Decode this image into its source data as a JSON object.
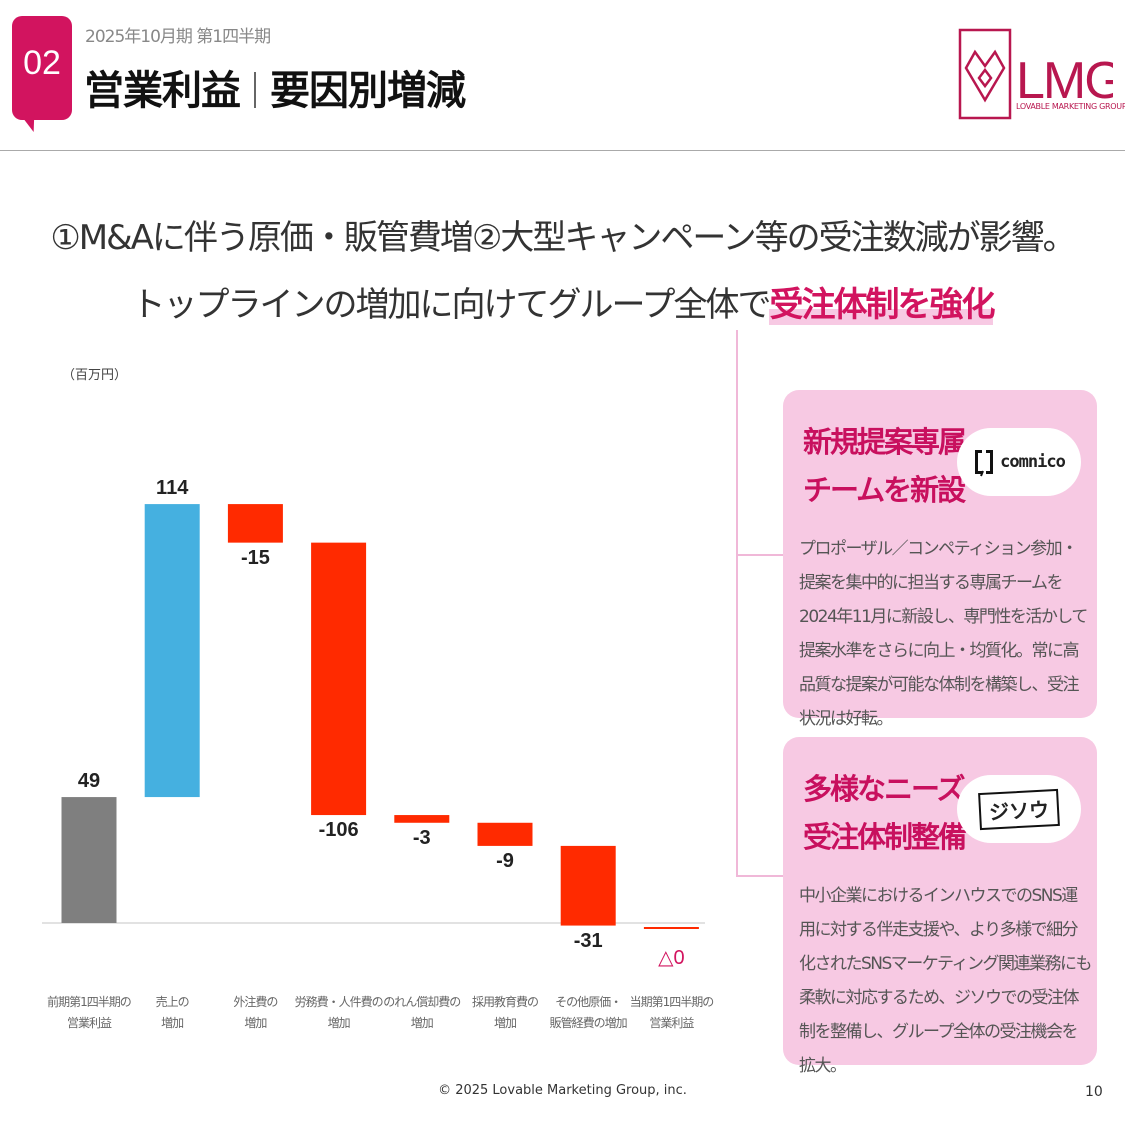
{
  "header": {
    "section_number": "02",
    "period": "2025年10月期 第1四半期",
    "title_left": "営業利益",
    "title_right": "要因別増減",
    "logo_text": "LMG",
    "logo_subtext": "LOVABLE MARKETING GROUP"
  },
  "headline": {
    "line1": "①M&Aに伴う原価・販管費増②大型キャンペーン等の受注数減が影響。",
    "line2_prefix": "トップラインの増加に向けてグループ全体で",
    "line2_emphasis": "受注体制を強化"
  },
  "chart_data": {
    "type": "waterfall",
    "unit_label": "（百万円）",
    "categories": [
      "前期第1四半期の\n営業利益",
      "売上の\n増加",
      "外注費の\n増加",
      "労務費・人件費の\n増加",
      "のれん償却費の\n増加",
      "採用教育費の\n増加",
      "その他原価・\n販管経費の増加",
      "当期第1四半期の\n営業利益"
    ],
    "values": [
      49,
      114,
      -15,
      -106,
      -3,
      -9,
      -31,
      0
    ],
    "kinds": [
      "total",
      "delta",
      "delta",
      "delta",
      "delta",
      "delta",
      "delta",
      "total"
    ],
    "labels": [
      "49",
      "114",
      "-15",
      "-106",
      "-3",
      "-9",
      "-31",
      "△0"
    ],
    "colors": {
      "total": "#7f7f7f",
      "increase": "#45b0e0",
      "decrease": "#ff2a00",
      "final_label": "#d2145f"
    },
    "grid": false
  },
  "cards": [
    {
      "title_line1": "新規提案専属",
      "title_line2": "チームを新設",
      "logo_text": "comnico",
      "body": "プロポーザル／コンペティション参加・提案を集中的に担当する専属チームを2024年11月に新設し、専門性を活かして提案水準をさらに向上・均質化。常に高品質な提案が可能な体制を構築し、受注状況は好転。"
    },
    {
      "title_line1": "多様なニーズへの",
      "title_line2": "受注体制整備",
      "logo_text": "ジソウ",
      "body": "中小企業におけるインハウスでのSNS運用に対する伴走支援や、より多様で細分化されたSNSマーケティング関連業務にも柔軟に対応するため、ジソウでの受注体制を整備し、グループ全体の受注機会を拡大。"
    }
  ],
  "footer": {
    "copyright": "© 2025 Lovable Marketing Group, inc.",
    "page_number": "10"
  },
  "colors": {
    "brand": "#d2145f",
    "card_bg": "#f7c9e3"
  }
}
